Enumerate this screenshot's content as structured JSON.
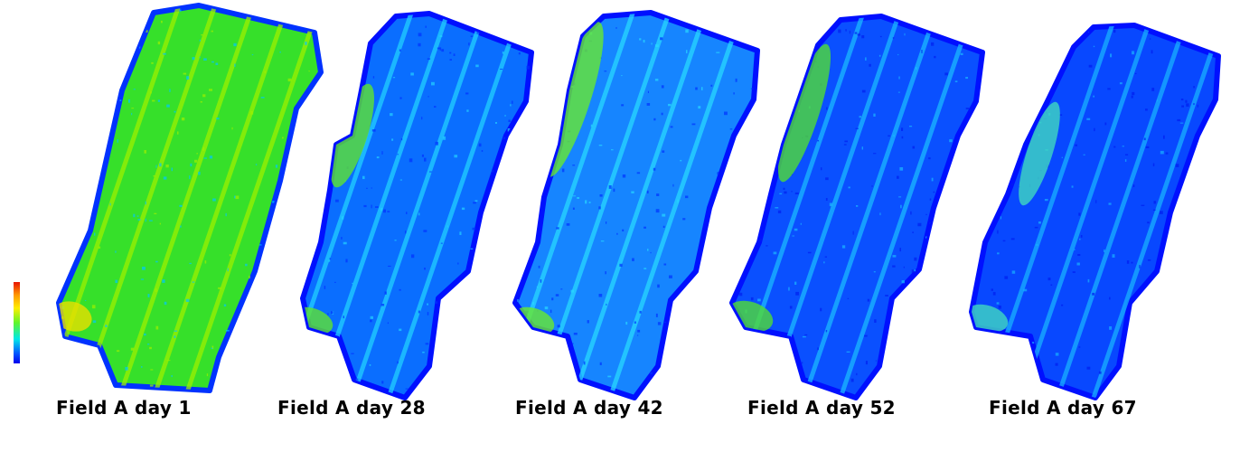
{
  "colorbar": {
    "stops": [
      "#e81400",
      "#ff9900",
      "#ffee00",
      "#5ff52a",
      "#00e8e8",
      "#0055ff",
      "#0000ee"
    ]
  },
  "panels": [
    {
      "caption": "Field A day 1",
      "colors": {
        "base": "#36e02a",
        "edge": "#0032ff",
        "stripe": "#9cf000",
        "speckle": "#00c8ff",
        "hot": "#e8e000"
      }
    },
    {
      "caption": "Field A day 28",
      "colors": {
        "base": "#0a6eff",
        "edge": "#0010ff",
        "stripe": "#22d0ff",
        "speckle": "#0030ff",
        "hot": "#5ee430"
      }
    },
    {
      "caption": "Field A day 42",
      "colors": {
        "base": "#1685ff",
        "edge": "#0010ff",
        "stripe": "#28d8ff",
        "speckle": "#0032ff",
        "hot": "#68e830"
      }
    },
    {
      "caption": "Field A day 52",
      "colors": {
        "base": "#0a50ff",
        "edge": "#0010ff",
        "stripe": "#1bb8ff",
        "speckle": "#0020f0",
        "hot": "#50dc34"
      }
    },
    {
      "caption": "Field A day 67",
      "colors": {
        "base": "#0848ff",
        "edge": "#0010ff",
        "stripe": "#18b0ff",
        "speckle": "#001ef0",
        "hot": "#40d8c0"
      }
    }
  ]
}
